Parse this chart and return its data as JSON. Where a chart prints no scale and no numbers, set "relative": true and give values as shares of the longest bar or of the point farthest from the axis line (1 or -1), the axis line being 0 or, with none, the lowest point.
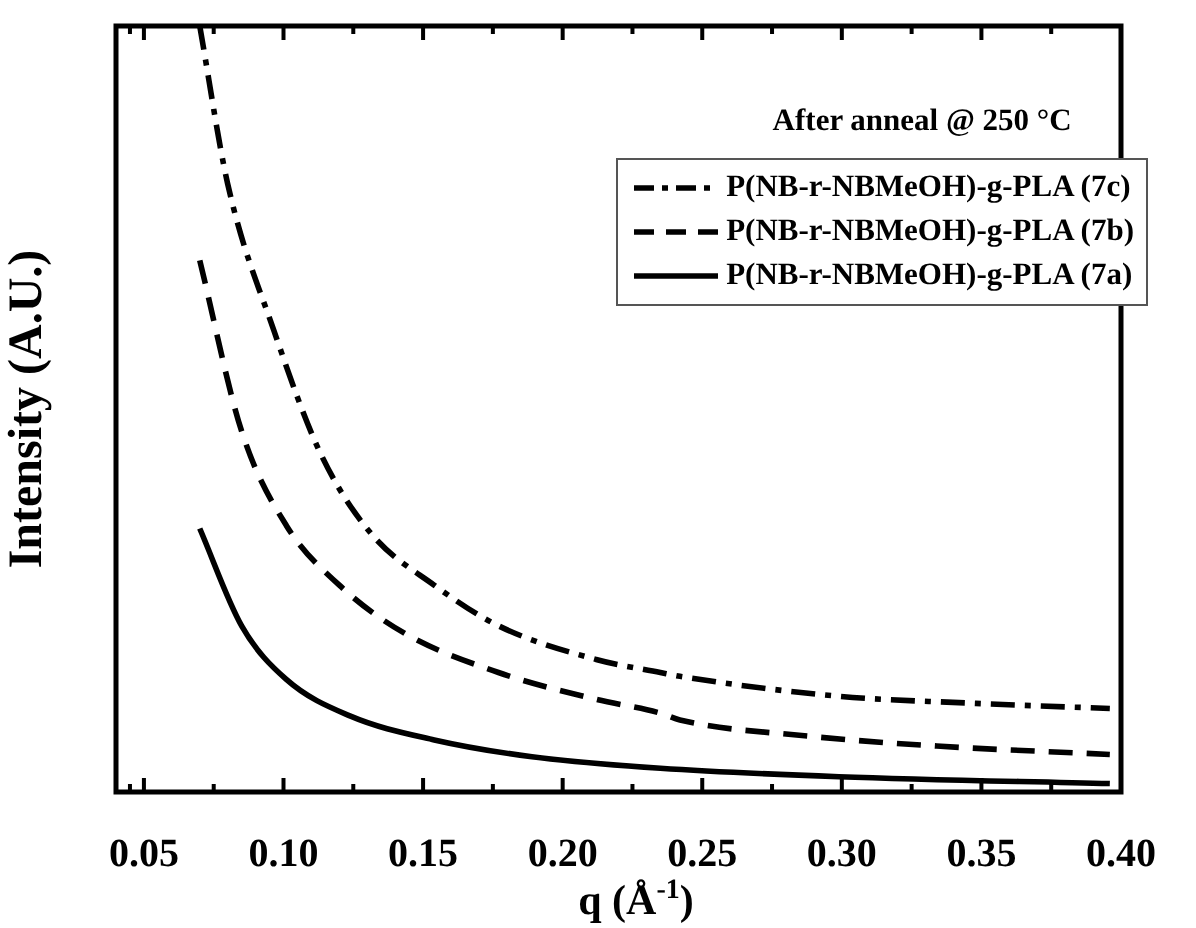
{
  "chart_data": {
    "type": "line",
    "relative": true,
    "xlabel": "q (Å$^{-1}$)",
    "ylabel": "Intensity (A.U.)",
    "legend_title": "After anneal @ 250 °C",
    "legend": "top right",
    "grid": false,
    "marker": "none",
    "xlim": [
      0.04,
      0.4
    ],
    "xticks": [
      {
        "value": 0.045,
        "label": null
      },
      0.05,
      {
        "value": 0.075,
        "label": null
      },
      {
        "value": 0.1,
        "label": "0.10"
      },
      {
        "value": 0.125,
        "label": null
      },
      0.15,
      {
        "value": 0.175,
        "label": null
      },
      {
        "value": 0.2,
        "label": "0.20"
      },
      {
        "value": 0.225,
        "label": null
      },
      0.25,
      {
        "value": 0.275,
        "label": null
      },
      {
        "value": 0.3,
        "label": "0.30"
      },
      {
        "value": 0.325,
        "label": null
      },
      0.35,
      {
        "value": 0.375,
        "label": null
      },
      {
        "value": 0.4,
        "label": "0.40"
      }
    ],
    "series": [
      {
        "name": "P(NB-r-NBMeOH)-g-PLA (7c)",
        "color": "#000000",
        "line_style": "dashdot",
        "x": [
          0.07,
          0.08,
          0.0966,
          0.113,
          0.131,
          0.154,
          0.177,
          0.212,
          0.235,
          0.242,
          0.299,
          0.346,
          0.396
        ],
        "values": [
          1,
          0.794,
          0.602,
          0.444,
          0.339,
          0.27,
          0.217,
          0.173,
          0.156,
          0.151,
          0.125,
          0.116,
          0.109
        ]
      },
      {
        "name": "P(NB-r-NBMeOH)-g-PLA (7b)",
        "color": "#000000",
        "line_style": "dashed",
        "x": [
          0.07,
          0.085,
          0.101,
          0.12,
          0.143,
          0.177,
          0.212,
          0.235,
          0.242,
          0.288,
          0.334,
          0.396
        ],
        "values": [
          0.694,
          0.471,
          0.348,
          0.27,
          0.208,
          0.156,
          0.121,
          0.103,
          0.094,
          0.073,
          0.06,
          0.049
        ]
      },
      {
        "name": "P(NB-r-NBMeOH)-g-PLA (7a)",
        "color": "#000000",
        "line_style": "solid",
        "x": [
          0.07,
          0.085,
          0.101,
          0.124,
          0.154,
          0.189,
          0.235,
          0.299,
          0.396
        ],
        "values": [
          0.344,
          0.217,
          0.147,
          0.099,
          0.068,
          0.046,
          0.031,
          0.02,
          0.011
        ]
      }
    ]
  }
}
